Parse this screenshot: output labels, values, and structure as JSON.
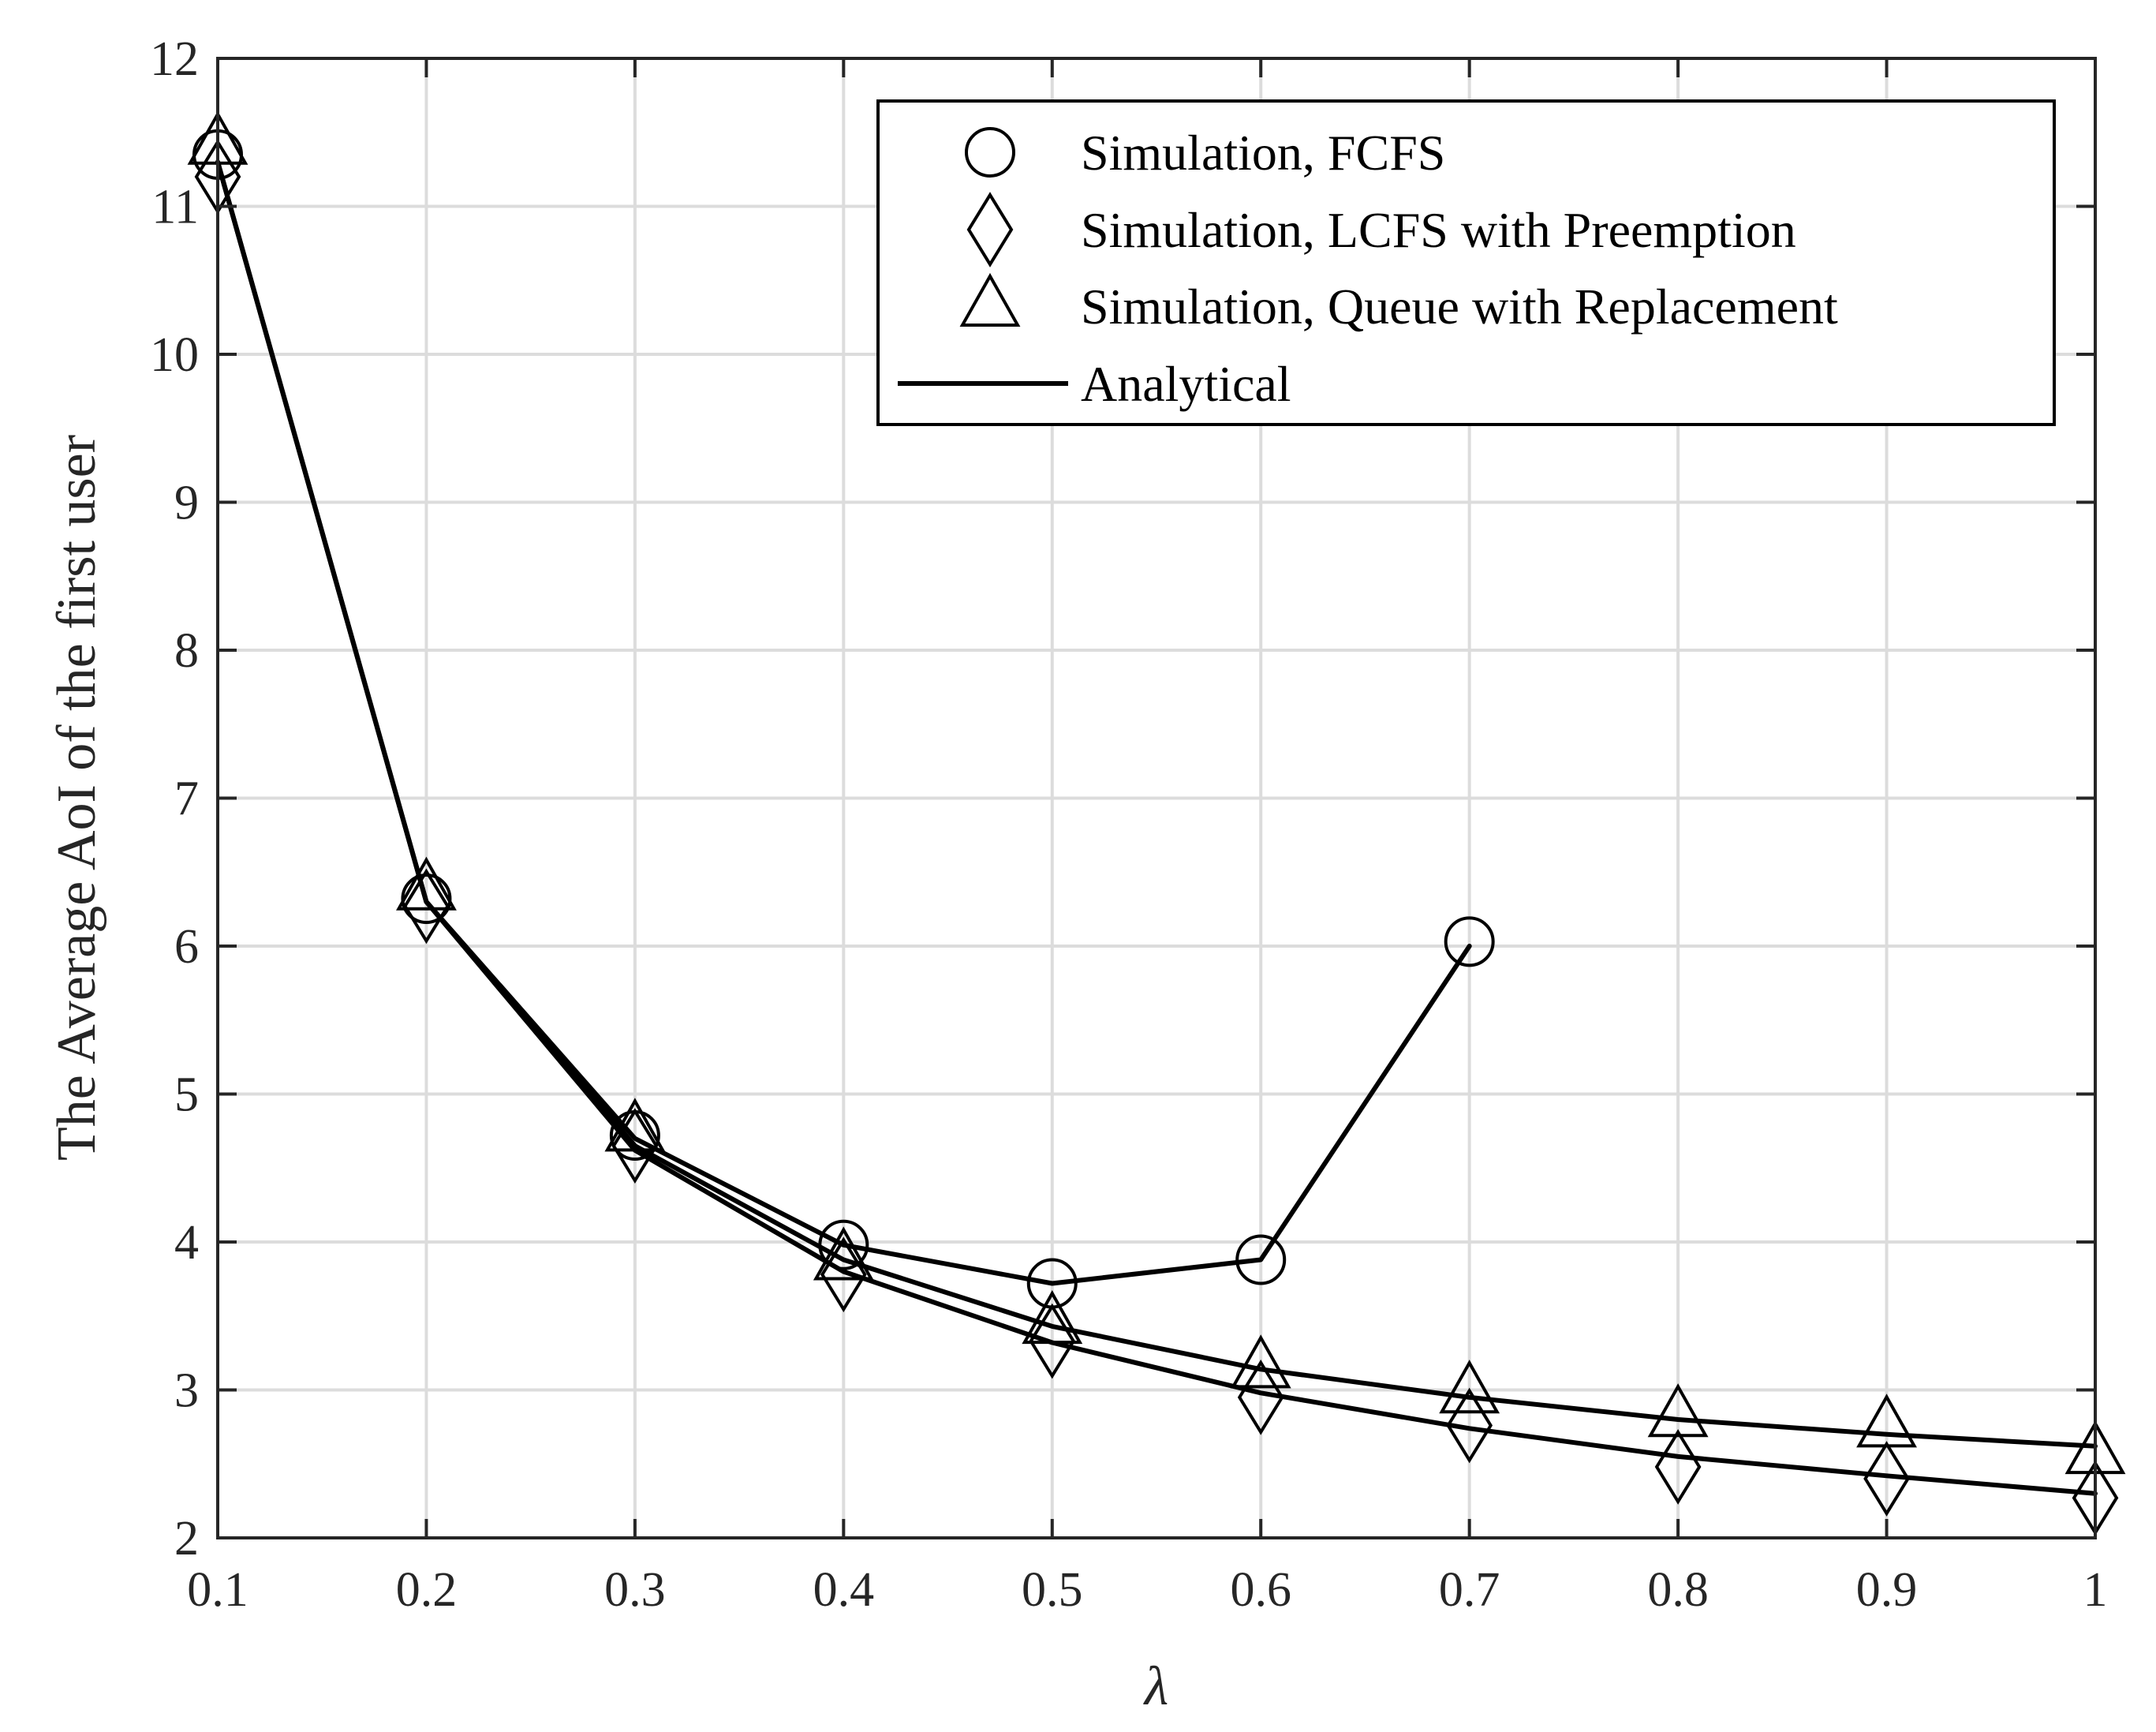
{
  "chart_data": {
    "type": "line",
    "title": "",
    "xlabel": "λ",
    "ylabel": "The Average AoI of the first user",
    "xlim": [
      0.1,
      1
    ],
    "ylim": [
      2,
      12
    ],
    "grid": true,
    "legend_position": "top-right",
    "x_ticks": [
      0.1,
      0.2,
      0.3,
      0.4,
      0.5,
      0.6,
      0.7,
      0.8,
      0.9,
      1
    ],
    "x_tick_labels": [
      "0.1",
      "0.2",
      "0.3",
      "0.4",
      "0.5",
      "0.6",
      "0.7",
      "0.8",
      "0.9",
      "1"
    ],
    "y_ticks": [
      2,
      3,
      4,
      5,
      6,
      7,
      8,
      9,
      10,
      11,
      12
    ],
    "y_tick_labels": [
      "2",
      "3",
      "4",
      "5",
      "6",
      "7",
      "8",
      "9",
      "10",
      "11",
      "12"
    ],
    "series": [
      {
        "name": "Simulation, FCFS",
        "marker": "circle",
        "x": [
          0.1,
          0.2,
          0.3,
          0.4,
          0.5,
          0.6,
          0.7
        ],
        "values": [
          11.35,
          6.32,
          4.72,
          3.98,
          3.72,
          3.88,
          6.03
        ]
      },
      {
        "name": "Simulation, LCFS with Preemption",
        "marker": "diamond",
        "x": [
          0.1,
          0.2,
          0.3,
          0.4,
          0.5,
          0.6,
          0.7,
          0.8,
          0.9,
          1
        ],
        "values": [
          11.2,
          6.27,
          4.65,
          3.78,
          3.33,
          2.95,
          2.76,
          2.48,
          2.4,
          2.27
        ]
      },
      {
        "name": "Simulation, Queue with Replacement",
        "marker": "triangle",
        "x": [
          0.1,
          0.2,
          0.3,
          0.4,
          0.5,
          0.6,
          0.7,
          0.8,
          0.9,
          1
        ],
        "values": [
          11.42,
          6.38,
          4.75,
          3.88,
          3.45,
          3.15,
          2.98,
          2.82,
          2.75,
          2.57
        ]
      },
      {
        "name": "Analytical",
        "marker": "line",
        "curves": [
          {
            "x": [
              0.1,
              0.2,
              0.3,
              0.4,
              0.5,
              0.6,
              0.7
            ],
            "values": [
              11.3,
              6.3,
              4.7,
              3.98,
              3.72,
              3.88,
              6.0
            ]
          },
          {
            "x": [
              0.1,
              0.2,
              0.3,
              0.4,
              0.5,
              0.6,
              0.7,
              0.8,
              0.9,
              1
            ],
            "values": [
              11.3,
              6.3,
              4.62,
              3.8,
              3.32,
              2.98,
              2.74,
              2.55,
              2.42,
              2.3
            ]
          },
          {
            "x": [
              0.1,
              0.2,
              0.3,
              0.4,
              0.5,
              0.6,
              0.7,
              0.8,
              0.9,
              1
            ],
            "values": [
              11.3,
              6.3,
              4.65,
              3.88,
              3.43,
              3.14,
              2.95,
              2.8,
              2.7,
              2.62
            ]
          }
        ]
      }
    ]
  }
}
